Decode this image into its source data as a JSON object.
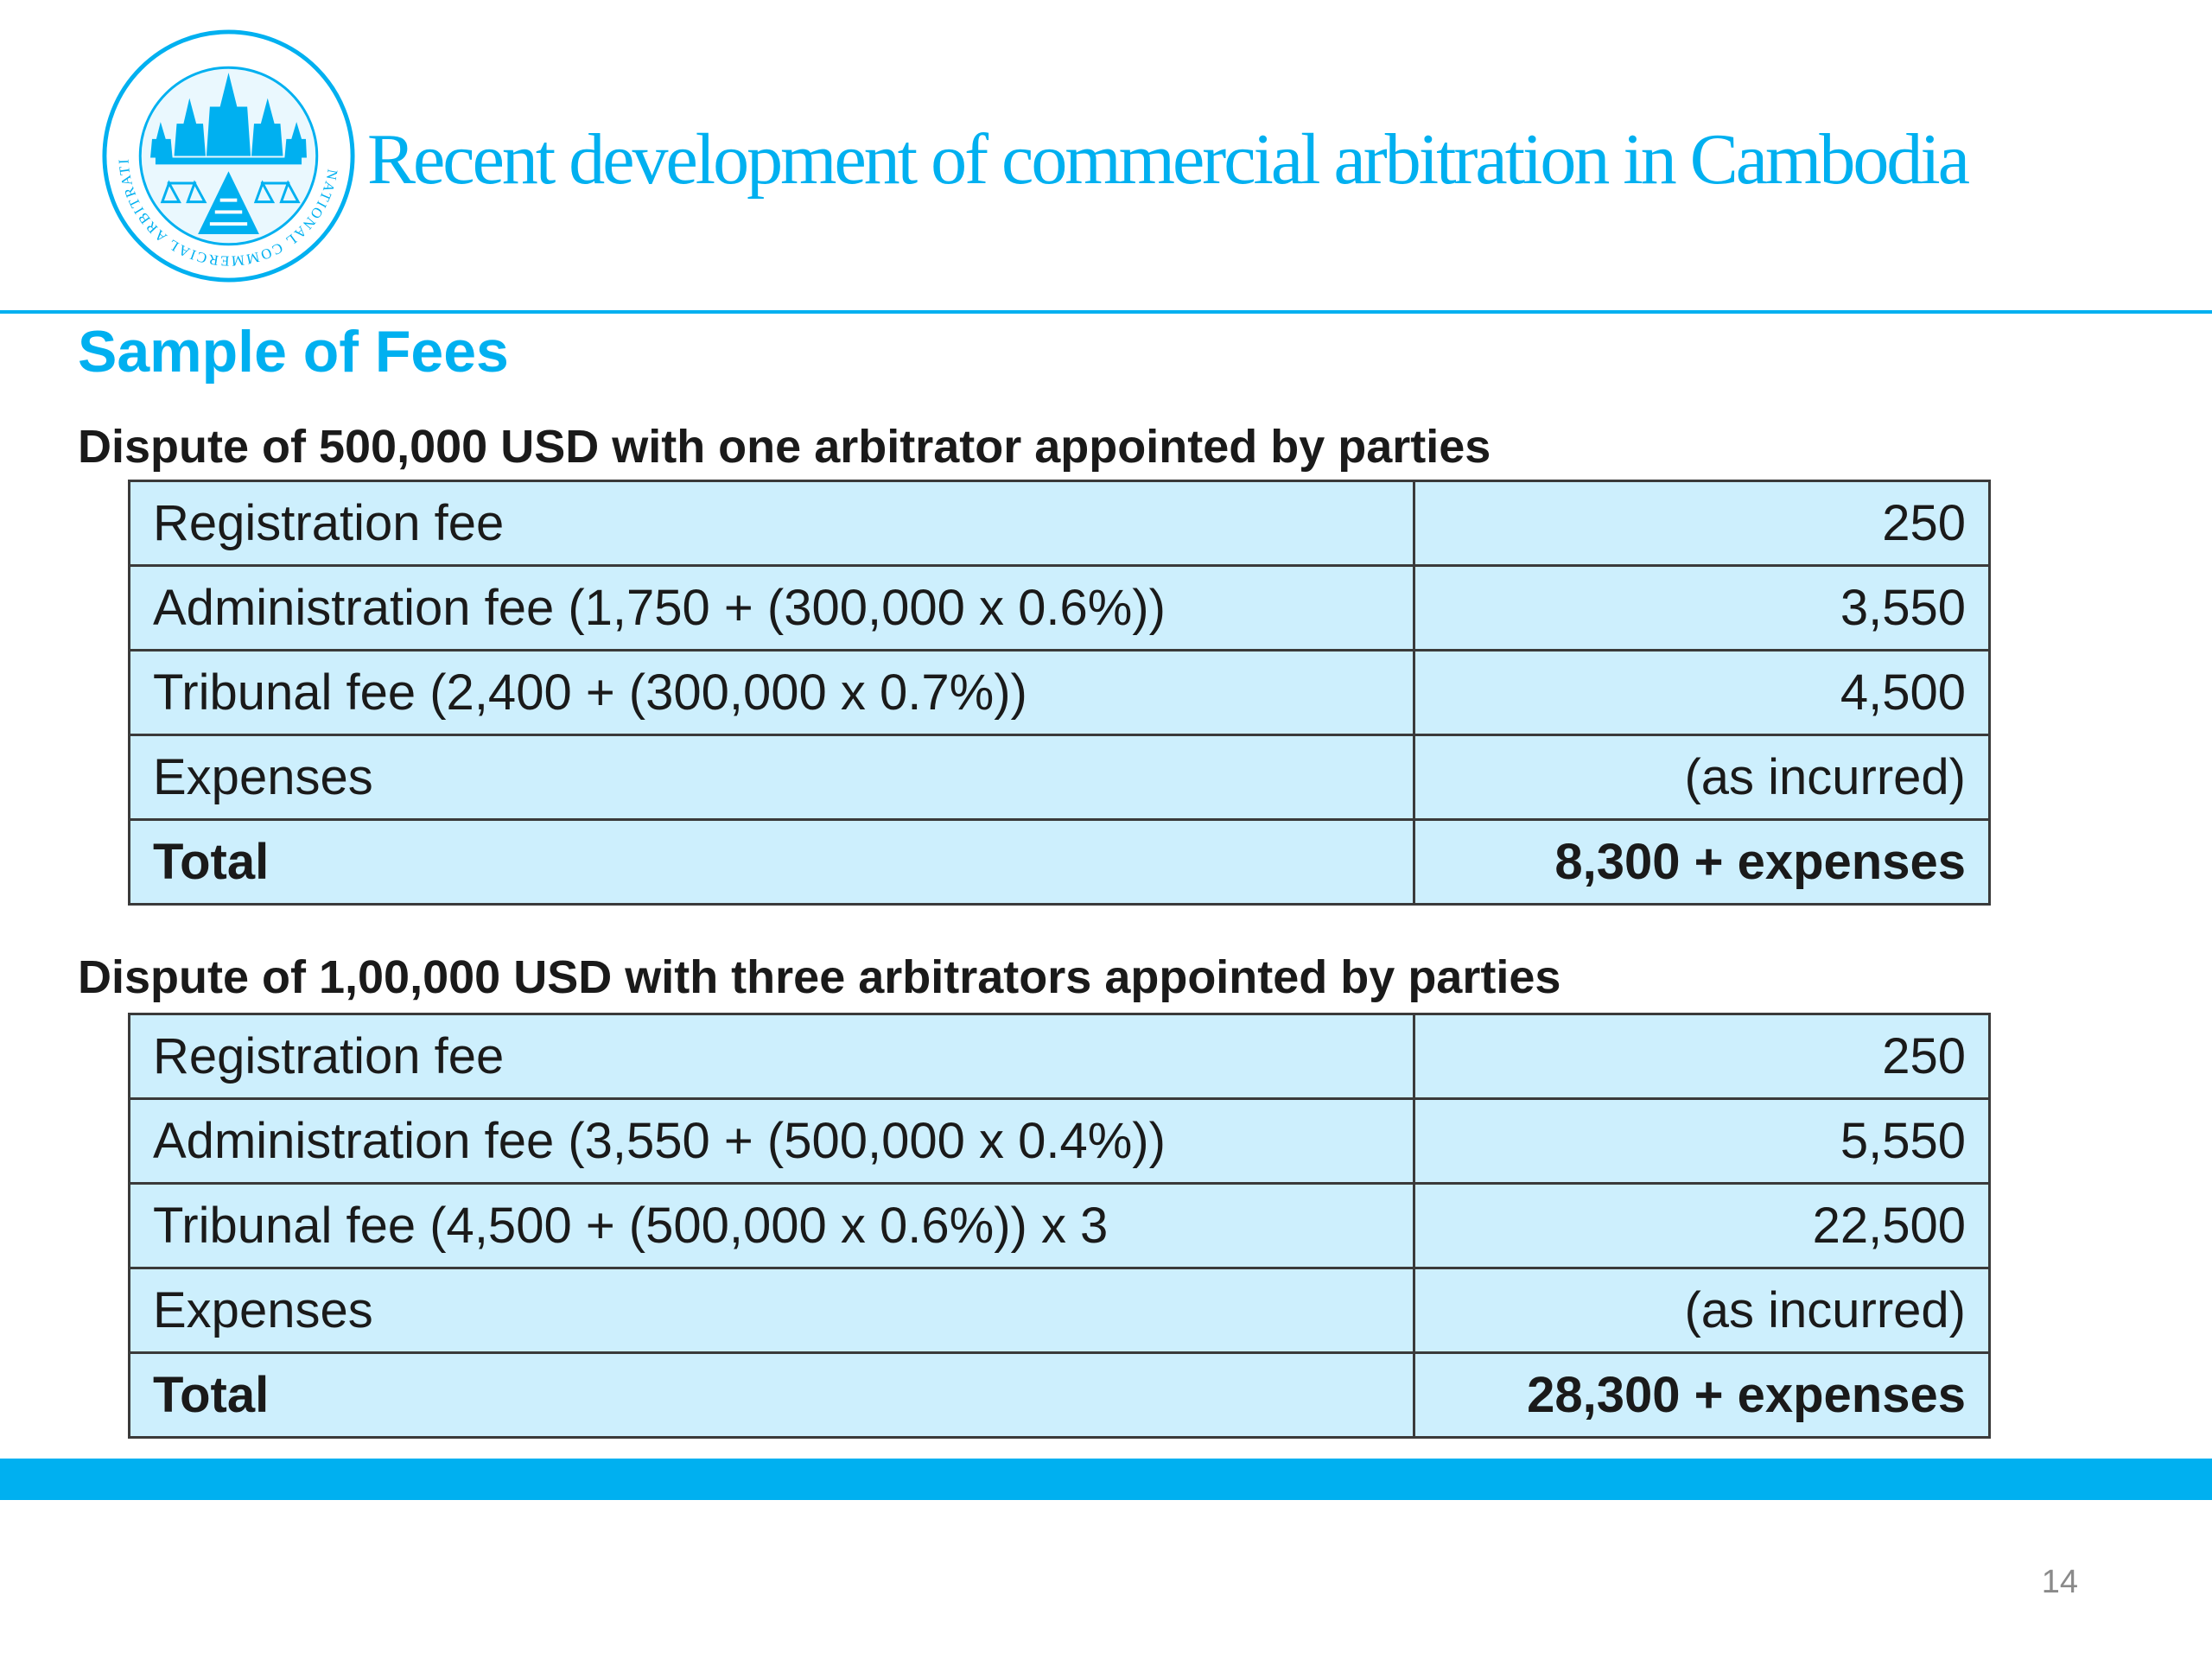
{
  "colors": {
    "accent": "#00b0f0",
    "table_fill": "#cdeffd",
    "border": "#3a3a3a"
  },
  "header": {
    "logo_icon": "national-commercial-arbitration-center-seal",
    "logo_text": "NATIONAL COMMERCIAL ARBITRATION CENTER",
    "title": "Recent development  of commercial arbitration in Cambodia"
  },
  "section_heading": "Sample of Fees",
  "examples": [
    {
      "heading": "Dispute of 500,000 USD with one arbitrator appointed by parties",
      "rows": [
        {
          "label": "Registration fee",
          "value": "250"
        },
        {
          "label": "Administration fee (1,750 + (300,000 x 0.6%))",
          "value": "3,550"
        },
        {
          "label": "Tribunal fee (2,400 + (300,000 x 0.7%))",
          "value": "4,500"
        },
        {
          "label": "Expenses",
          "value": "(as incurred)"
        },
        {
          "label": "Total",
          "value": "8,300 + expenses"
        }
      ]
    },
    {
      "heading": "Dispute of 1,00,000 USD with three arbitrators appointed by parties",
      "rows": [
        {
          "label": "Registration fee",
          "value": "250"
        },
        {
          "label": "Administration fee (3,550 + (500,000 x 0.4%))",
          "value": "5,550"
        },
        {
          "label": "Tribunal fee (4,500 + (500,000 x 0.6%)) x 3",
          "value": "22,500"
        },
        {
          "label": "Expenses",
          "value": "(as incurred)"
        },
        {
          "label": "Total",
          "value": "28,300 + expenses"
        }
      ]
    }
  ],
  "page_number": "14"
}
